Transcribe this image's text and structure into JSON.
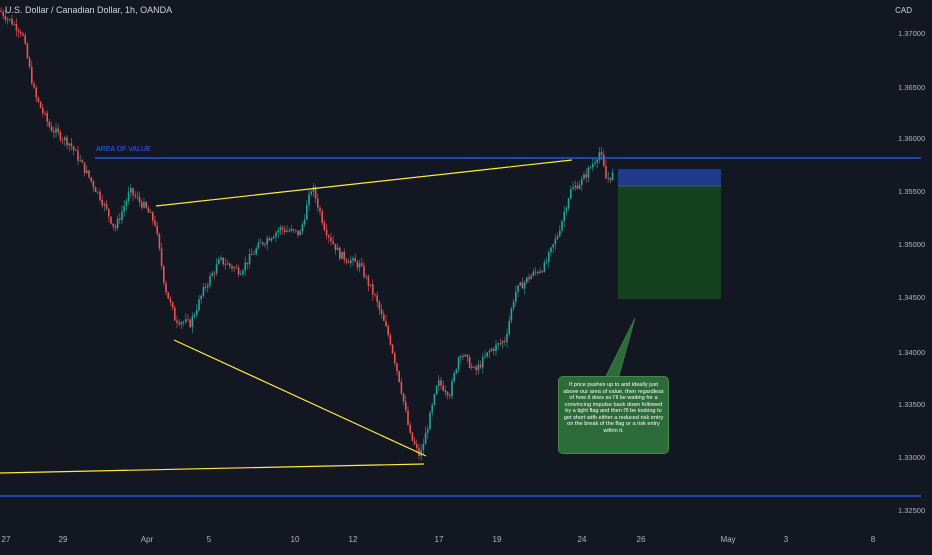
{
  "header": {
    "title": "U.S. Dollar / Canadian Dollar, 1h, OANDA",
    "currency": "CAD"
  },
  "price_axis": {
    "labels": [
      "1.37000",
      "1.36500",
      "1.36000",
      "1.35500",
      "1.35000",
      "1.34500",
      "1.34000",
      "1.33500",
      "1.33000",
      "1.32500"
    ]
  },
  "time_axis": {
    "labels": [
      "27",
      "29",
      "Apr",
      "5",
      "10",
      "12",
      "17",
      "19",
      "24",
      "26",
      "May",
      "3",
      "8"
    ]
  },
  "annotations": {
    "zone_label": "AREA OF VALUE",
    "note": "If price pushes up to and ideally just above our area of value, then regardless of how it does so I'll be waiting for a convincing impulse back down followed by a tight flag and then I'll be looking to get short with either a reduced risk entry on the break of the flag or a risk entry within it."
  },
  "colors": {
    "background": "#131722",
    "bull": "#26a69a",
    "bear": "#ef5350",
    "zone_line": "#2962ff",
    "trendline": "#ffeb3b",
    "stop_zone": "#1f3a8a",
    "target_zone": "#14421f",
    "note_bg": "#2e6b3a"
  },
  "chart_data": {
    "type": "candlestick",
    "title": "U.S. Dollar / Canadian Dollar, 1h, OANDA",
    "ylim": [
      1.3235,
      1.3725
    ],
    "area_of_value": 1.3582,
    "support_level": 1.3262,
    "path": [
      [
        0,
        1.372
      ],
      [
        22,
        1.37
      ],
      [
        35,
        1.364
      ],
      [
        50,
        1.361
      ],
      [
        70,
        1.3595
      ],
      [
        85,
        1.357
      ],
      [
        100,
        1.3545
      ],
      [
        115,
        1.3515
      ],
      [
        130,
        1.355
      ],
      [
        145,
        1.3535
      ],
      [
        155,
        1.352
      ],
      [
        165,
        1.346
      ],
      [
        175,
        1.343
      ],
      [
        190,
        1.3425
      ],
      [
        205,
        1.346
      ],
      [
        220,
        1.3485
      ],
      [
        240,
        1.3475
      ],
      [
        260,
        1.35
      ],
      [
        280,
        1.3515
      ],
      [
        300,
        1.351
      ],
      [
        312,
        1.3555
      ],
      [
        325,
        1.3515
      ],
      [
        340,
        1.349
      ],
      [
        360,
        1.348
      ],
      [
        375,
        1.345
      ],
      [
        390,
        1.341
      ],
      [
        400,
        1.337
      ],
      [
        410,
        1.332
      ],
      [
        420,
        1.33
      ],
      [
        428,
        1.333
      ],
      [
        438,
        1.337
      ],
      [
        450,
        1.336
      ],
      [
        460,
        1.34
      ],
      [
        475,
        1.338
      ],
      [
        490,
        1.34
      ],
      [
        505,
        1.341
      ],
      [
        515,
        1.3455
      ],
      [
        530,
        1.347
      ],
      [
        545,
        1.348
      ],
      [
        558,
        1.351
      ],
      [
        570,
        1.355
      ],
      [
        582,
        1.356
      ],
      [
        592,
        1.3575
      ],
      [
        600,
        1.3588
      ],
      [
        606,
        1.3562
      ],
      [
        614,
        1.3566
      ]
    ]
  }
}
